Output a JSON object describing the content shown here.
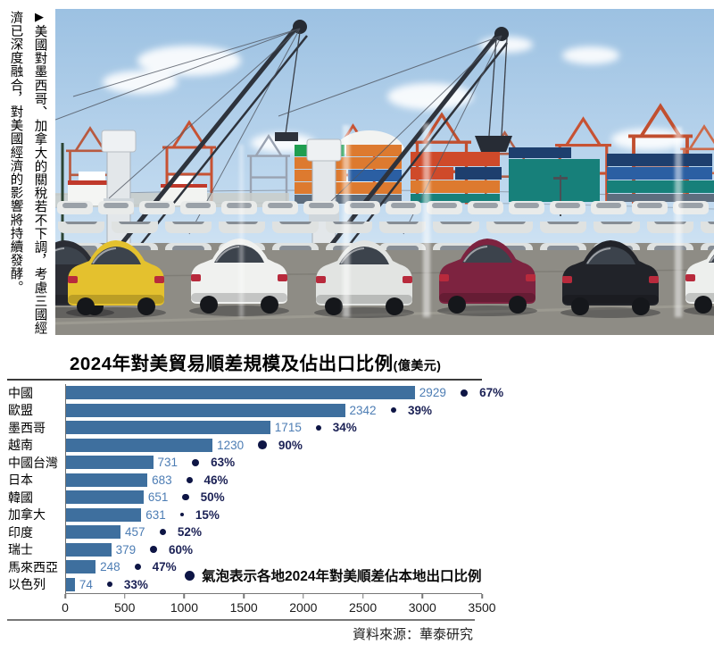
{
  "caption": {
    "marker": "▶",
    "text": "美國對墨西哥、加拿大的關稅若不下調，考慮三國經濟已深度融合，對美國經濟的影響將持續發酵。"
  },
  "chart": {
    "title": "2024年對美貿易順差規模及佔出口比例",
    "unit": "(億美元)",
    "legend": "氣泡表示各地2024年對美順差佔本地出口比例",
    "source": "資料來源：華泰研究"
  },
  "chart_data": {
    "type": "bar",
    "orientation": "horizontal",
    "title": "2024年對美貿易順差規模及佔出口比例(億美元)",
    "categories": [
      "中國",
      "歐盟",
      "墨西哥",
      "越南",
      "中國台灣",
      "日本",
      "韓國",
      "加拿大",
      "印度",
      "瑞士",
      "馬來西亞",
      "以色列"
    ],
    "series": [
      {
        "name": "2024年對美貿易順差(億美元)",
        "values": [
          2929,
          2342,
          1715,
          1230,
          731,
          683,
          651,
          631,
          457,
          379,
          248,
          74
        ]
      },
      {
        "name": "對美順差佔本地出口比例(%)",
        "values": [
          67,
          39,
          34,
          90,
          63,
          46,
          50,
          15,
          52,
          60,
          47,
          33
        ]
      }
    ],
    "xlim": [
      0,
      3500
    ],
    "x_ticks": [
      0,
      500,
      1000,
      1500,
      2000,
      2500,
      3000,
      3500
    ],
    "annotation": "氣泡表示各地2024年對美順差佔本地出口比例",
    "bar_color": "#3e6f9e",
    "value_label_color": "#4d7db4",
    "bubble_color": "#0e1545",
    "legend_position": "inside-bottom"
  }
}
